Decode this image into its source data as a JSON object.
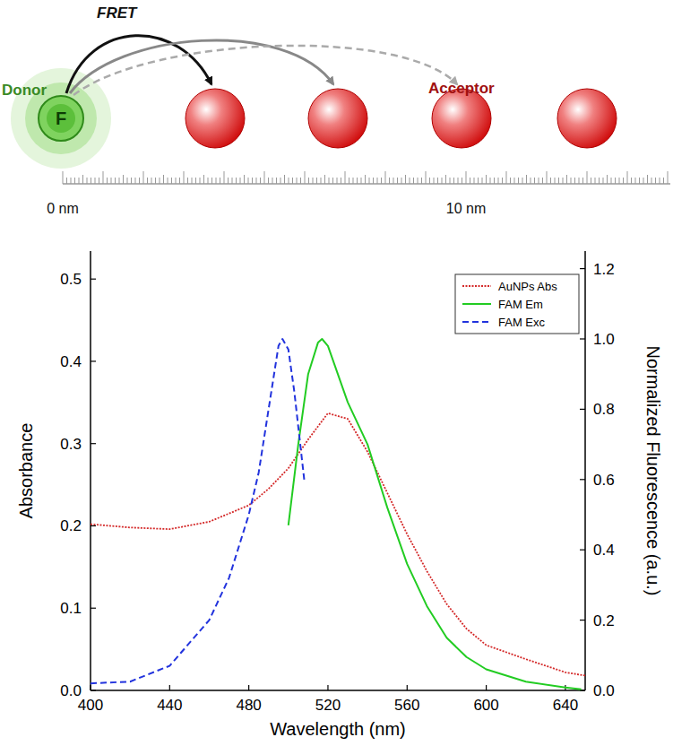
{
  "diagram": {
    "title": "FRET",
    "donor": {
      "label": "Donor",
      "symbol": "F"
    },
    "acceptor": {
      "label": "Acceptor"
    },
    "ruler": {
      "labels": [
        "0 nm",
        "10 nm"
      ]
    }
  },
  "chart_data": {
    "type": "line",
    "x_label": "Wavelength (nm)",
    "y_label": "Absorbance",
    "y2_label": "Normalized Fluorescence (a.u.)",
    "xlim": [
      400,
      650
    ],
    "xticks": [
      400,
      440,
      480,
      520,
      560,
      600,
      640
    ],
    "ylim": [
      0,
      0.534
    ],
    "yticks": [
      {
        "value": 0,
        "label": "0.0"
      },
      0.1,
      0.2,
      0.3,
      0.4,
      0.5
    ],
    "y2lim": [
      0,
      1.25
    ],
    "y2ticks": [
      {
        "value": 0,
        "label": "0.0"
      },
      0.2,
      0.4,
      0.6,
      0.8,
      {
        "value": 1,
        "label": "1.0"
      },
      1.2
    ],
    "legend": "upper right",
    "grid": false,
    "series": [
      {
        "name": "AuNPs Abs",
        "color": "#d42a2a",
        "line_style": "dotted",
        "axis": "y",
        "x": [
          400,
          420,
          440,
          460,
          480,
          490,
          500,
          510,
          520,
          530,
          540,
          550,
          560,
          570,
          580,
          590,
          600,
          620,
          640,
          650
        ],
        "values": [
          0.202,
          0.198,
          0.196,
          0.205,
          0.225,
          0.245,
          0.27,
          0.305,
          0.337,
          0.33,
          0.29,
          0.24,
          0.19,
          0.145,
          0.105,
          0.075,
          0.055,
          0.038,
          0.022,
          0.018
        ]
      },
      {
        "name": "FAM Em",
        "color": "#22cc22",
        "line_style": "solid",
        "axis": "y2",
        "x": [
          500,
          505,
          510,
          515,
          517,
          520,
          530,
          540,
          550,
          560,
          570,
          580,
          590,
          600,
          620,
          640,
          648
        ],
        "values": [
          0.47,
          0.7,
          0.9,
          0.99,
          1.0,
          0.98,
          0.82,
          0.7,
          0.52,
          0.36,
          0.24,
          0.15,
          0.095,
          0.06,
          0.025,
          0.008,
          0.003
        ]
      },
      {
        "name": "FAM Exc",
        "color": "#2233dd",
        "line_style": "dashed",
        "axis": "y2",
        "x": [
          400,
          420,
          440,
          460,
          470,
          480,
          485,
          490,
          495,
          497,
          500,
          503,
          506,
          508
        ],
        "values": [
          0.02,
          0.025,
          0.07,
          0.2,
          0.32,
          0.5,
          0.62,
          0.8,
          0.98,
          1.0,
          0.97,
          0.85,
          0.7,
          0.6
        ]
      }
    ]
  }
}
